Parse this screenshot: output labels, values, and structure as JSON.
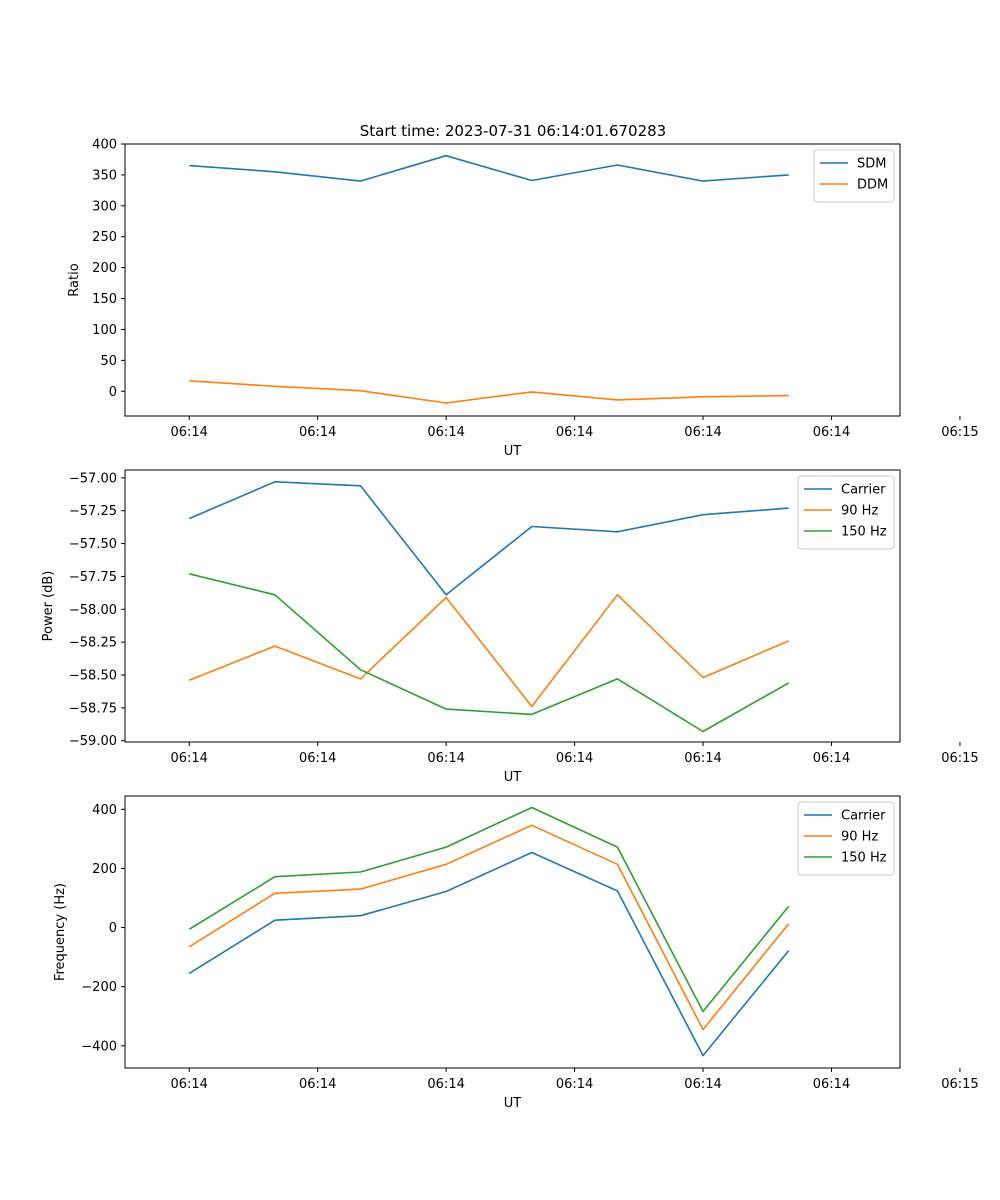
{
  "figure_title": "Start time: 2023-07-31 06:14:01.670283",
  "chart_data": [
    {
      "type": "line",
      "xlabel": "UT",
      "ylabel": "Ratio",
      "xlim": [
        -0.75,
        8.3
      ],
      "ylim": [
        -40,
        400
      ],
      "x_ticks": [
        0,
        1.5,
        3,
        4.5,
        6,
        7.5,
        9
      ],
      "x_tick_labels": [
        "06:14",
        "06:14",
        "06:14",
        "06:14",
        "06:14",
        "06:14",
        "06:15"
      ],
      "y_ticks": [
        0,
        50,
        100,
        150,
        200,
        250,
        300,
        350,
        400
      ],
      "y_tick_labels": [
        "0",
        "50",
        "100",
        "150",
        "200",
        "250",
        "300",
        "350",
        "400"
      ],
      "legend_position": "upper-right",
      "x": [
        0,
        1,
        2,
        3,
        4,
        5,
        6,
        7
      ],
      "series": [
        {
          "name": "SDM",
          "color": "#1f77b4",
          "values": [
            365,
            355,
            340,
            381,
            341,
            366,
            340,
            350
          ]
        },
        {
          "name": "DDM",
          "color": "#ff7f0e",
          "values": [
            17,
            8,
            1,
            -19,
            -1,
            -14,
            -9,
            -7
          ]
        }
      ]
    },
    {
      "type": "line",
      "xlabel": "UT",
      "ylabel": "Power (dB)",
      "xlim": [
        -0.75,
        8.3
      ],
      "ylim": [
        -59.01,
        -56.94
      ],
      "x_ticks": [
        0,
        1.5,
        3,
        4.5,
        6,
        7.5,
        9
      ],
      "x_tick_labels": [
        "06:14",
        "06:14",
        "06:14",
        "06:14",
        "06:14",
        "06:14",
        "06:15"
      ],
      "y_ticks": [
        -57.0,
        -57.25,
        -57.5,
        -57.75,
        -58.0,
        -58.25,
        -58.5,
        -58.75,
        -59.0
      ],
      "y_tick_labels": [
        "−57.00",
        "−57.25",
        "−57.50",
        "−57.75",
        "−58.00",
        "−58.25",
        "−58.50",
        "−58.75",
        "−59.00"
      ],
      "legend_position": "upper-right",
      "x": [
        0,
        1,
        2,
        3,
        4,
        5,
        6,
        7
      ],
      "series": [
        {
          "name": "Carrier",
          "color": "#1f77b4",
          "values": [
            -57.31,
            -57.03,
            -57.06,
            -57.89,
            -57.37,
            -57.41,
            -57.28,
            -57.23
          ]
        },
        {
          "name": "90 Hz",
          "color": "#ff7f0e",
          "values": [
            -58.54,
            -58.28,
            -58.53,
            -57.91,
            -58.74,
            -57.89,
            -58.52,
            -58.24
          ]
        },
        {
          "name": "150 Hz",
          "color": "#2ca02c",
          "values": [
            -57.73,
            -57.89,
            -58.46,
            -58.76,
            -58.8,
            -58.53,
            -58.93,
            -58.56
          ]
        }
      ]
    },
    {
      "type": "line",
      "xlabel": "UT",
      "ylabel": "Frequency (Hz)",
      "xlim": [
        -0.75,
        8.3
      ],
      "ylim": [
        -475,
        445
      ],
      "x_ticks": [
        0,
        1.5,
        3,
        4.5,
        6,
        7.5,
        9
      ],
      "x_tick_labels": [
        "06:14",
        "06:14",
        "06:14",
        "06:14",
        "06:14",
        "06:14",
        "06:15"
      ],
      "y_ticks": [
        -400,
        -200,
        0,
        200,
        400
      ],
      "y_tick_labels": [
        "−400",
        "−200",
        "0",
        "200",
        "400"
      ],
      "legend_position": "upper-right",
      "x": [
        0,
        1,
        2,
        3,
        4,
        5,
        6,
        7
      ],
      "series": [
        {
          "name": "Carrier",
          "color": "#1f77b4",
          "values": [
            -155,
            25,
            40,
            122,
            254,
            124,
            -433,
            -78
          ]
        },
        {
          "name": "90 Hz",
          "color": "#ff7f0e",
          "values": [
            -65,
            116,
            130,
            214,
            346,
            214,
            -345,
            13
          ]
        },
        {
          "name": "150 Hz",
          "color": "#2ca02c",
          "values": [
            -6,
            172,
            188,
            272,
            406,
            272,
            -284,
            72
          ]
        }
      ]
    }
  ]
}
